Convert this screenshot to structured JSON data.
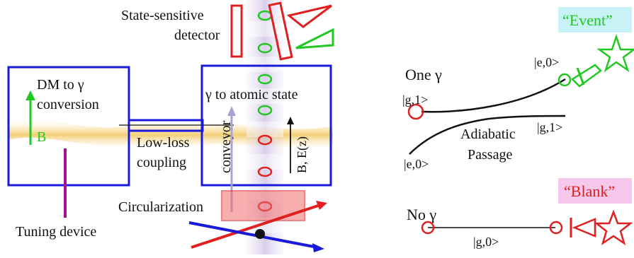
{
  "apparatus": {
    "detector_label_line1": "State-sensitive",
    "detector_label_line2": "detector",
    "dm_box_line1": "DM to γ",
    "dm_box_line2": "conversion",
    "b_label": "B",
    "atomic_box_label": "γ to atomic state",
    "conveyor_label": "conveyor",
    "field_label": "B, E(z)",
    "coupling_line1": "Low-loss",
    "coupling_line2": "coupling",
    "circularization_label": "Circularization",
    "tuning_label": "Tuning device"
  },
  "levels": {
    "one_photon": {
      "title": "One γ",
      "state_g1_left": "|g,1>",
      "state_e0_right": "|e,0>",
      "state_g1_right": "|g,1>",
      "state_e0_left": "|e,0>",
      "adiabatic_line1": "Adiabatic",
      "adiabatic_line2": "Passage",
      "event_badge": "“Event”"
    },
    "no_photon": {
      "title": "No γ",
      "state_g0": "|g,0>",
      "blank_badge": "“Blank”"
    }
  },
  "colors": {
    "box_blue": "#1a1adb",
    "detector_red": "#e02020",
    "detector_green": "#22c822",
    "beam_gold": "#f3d27a",
    "conveyor_purple": "#b9a6d8",
    "event_bg": "#c8f3f6",
    "blank_bg": "#f6c8ec",
    "tuning_magenta": "#a0168f"
  }
}
